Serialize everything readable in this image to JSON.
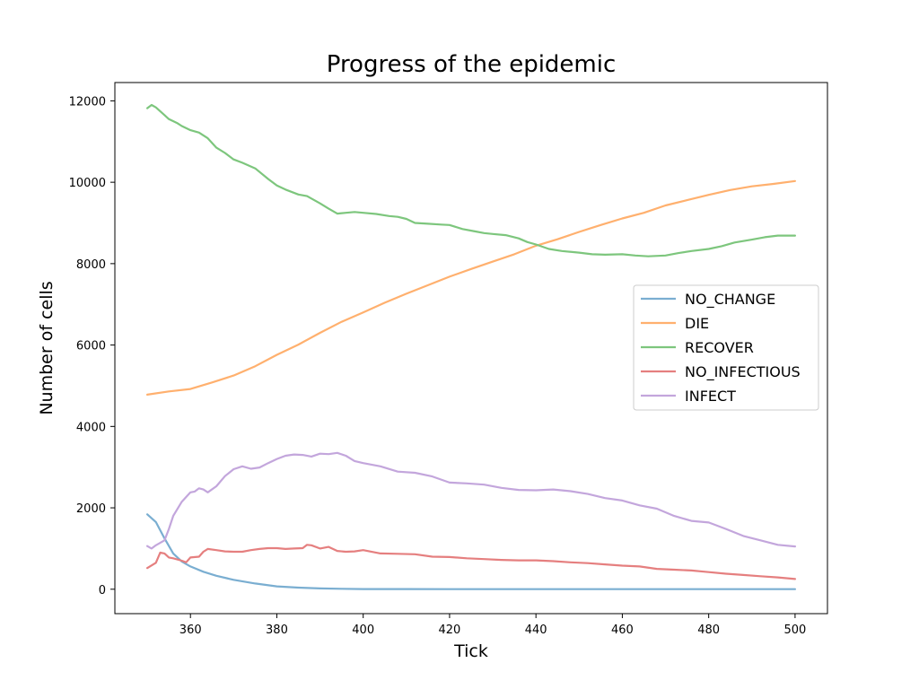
{
  "chart_data": {
    "type": "line",
    "title": "Progress of the epidemic",
    "xlabel": "Tick",
    "ylabel": "Number of cells",
    "xlim": [
      342.5,
      507.5
    ],
    "ylim": [
      -600,
      12450
    ],
    "xticks": [
      360,
      380,
      400,
      420,
      440,
      460,
      480,
      500
    ],
    "yticks": [
      0,
      2000,
      4000,
      6000,
      8000,
      10000,
      12000
    ],
    "grid": false,
    "legend_position": "center-right",
    "series": [
      {
        "name": "NO_CHANGE",
        "color": "#7aaed1",
        "x": [
          350,
          352,
          354,
          356,
          358,
          360,
          363,
          366,
          370,
          375,
          380,
          385,
          390,
          395,
          400,
          410,
          420,
          440,
          460,
          480,
          500
        ],
        "y": [
          1840,
          1650,
          1250,
          880,
          680,
          560,
          430,
          330,
          230,
          140,
          70,
          40,
          20,
          10,
          5,
          3,
          2,
          2,
          2,
          2,
          2
        ]
      },
      {
        "name": "DIE",
        "color": "#ffb06e",
        "x": [
          350,
          355,
          360,
          365,
          370,
          375,
          380,
          385,
          390,
          395,
          400,
          405,
          410,
          415,
          420,
          425,
          430,
          435,
          440,
          445,
          450,
          455,
          460,
          465,
          470,
          475,
          480,
          485,
          490,
          495,
          500
        ],
        "y": [
          4780,
          4860,
          4920,
          5080,
          5250,
          5480,
          5760,
          6010,
          6300,
          6570,
          6800,
          7040,
          7260,
          7470,
          7680,
          7870,
          8050,
          8230,
          8440,
          8600,
          8780,
          8950,
          9110,
          9250,
          9430,
          9560,
          9690,
          9810,
          9900,
          9960,
          10030
        ]
      },
      {
        "name": "RECOVER",
        "color": "#7dc67d",
        "x": [
          350,
          351,
          352,
          354,
          355,
          357,
          358,
          360,
          362,
          364,
          366,
          368,
          370,
          372,
          375,
          378,
          380,
          382,
          385,
          387,
          390,
          392,
          394,
          396,
          398,
          400,
          403,
          406,
          408,
          410,
          412,
          415,
          418,
          420,
          423,
          426,
          428,
          430,
          433,
          436,
          438,
          440,
          443,
          446,
          450,
          453,
          456,
          460,
          463,
          466,
          470,
          473,
          476,
          480,
          483,
          486,
          490,
          493,
          496,
          500
        ],
        "y": [
          11820,
          11900,
          11840,
          11650,
          11550,
          11450,
          11380,
          11280,
          11220,
          11080,
          10850,
          10720,
          10560,
          10480,
          10340,
          10080,
          9920,
          9820,
          9700,
          9660,
          9480,
          9350,
          9230,
          9250,
          9270,
          9250,
          9220,
          9170,
          9150,
          9100,
          9000,
          8980,
          8960,
          8950,
          8850,
          8790,
          8750,
          8730,
          8700,
          8620,
          8530,
          8470,
          8360,
          8310,
          8270,
          8230,
          8220,
          8230,
          8200,
          8180,
          8200,
          8260,
          8310,
          8360,
          8430,
          8520,
          8590,
          8650,
          8690,
          8690
        ]
      },
      {
        "name": "NO_INFECTIOUS",
        "color": "#e57f7f",
        "x": [
          350,
          352,
          353,
          354,
          355,
          356,
          358,
          359,
          360,
          362,
          363,
          364,
          366,
          368,
          370,
          372,
          374,
          376,
          378,
          380,
          382,
          384,
          386,
          387,
          388,
          390,
          392,
          394,
          396,
          398,
          400,
          404,
          408,
          412,
          416,
          420,
          424,
          428,
          432,
          436,
          440,
          444,
          448,
          452,
          456,
          460,
          464,
          468,
          472,
          476,
          480,
          484,
          488,
          492,
          496,
          500
        ],
        "y": [
          520,
          650,
          900,
          880,
          780,
          760,
          700,
          660,
          780,
          800,
          920,
          990,
          960,
          930,
          920,
          920,
          960,
          990,
          1010,
          1010,
          990,
          1000,
          1010,
          1090,
          1080,
          1000,
          1040,
          940,
          920,
          930,
          960,
          880,
          870,
          860,
          800,
          790,
          760,
          740,
          720,
          710,
          710,
          690,
          660,
          640,
          610,
          580,
          560,
          500,
          480,
          460,
          420,
          380,
          350,
          320,
          290,
          250
        ]
      },
      {
        "name": "INFECT",
        "color": "#c3a6dc",
        "x": [
          350,
          351,
          352,
          354,
          355,
          356,
          358,
          360,
          361,
          362,
          363,
          364,
          366,
          368,
          370,
          372,
          374,
          376,
          378,
          380,
          382,
          384,
          386,
          388,
          390,
          392,
          394,
          396,
          398,
          400,
          404,
          408,
          412,
          416,
          420,
          424,
          428,
          432,
          436,
          440,
          444,
          448,
          452,
          456,
          460,
          464,
          468,
          472,
          476,
          480,
          484,
          488,
          492,
          496,
          500
        ],
        "y": [
          1060,
          1000,
          1080,
          1200,
          1480,
          1800,
          2150,
          2380,
          2400,
          2480,
          2450,
          2380,
          2530,
          2780,
          2950,
          3020,
          2960,
          2990,
          3100,
          3200,
          3280,
          3310,
          3300,
          3260,
          3330,
          3320,
          3350,
          3280,
          3150,
          3100,
          3020,
          2890,
          2860,
          2770,
          2620,
          2600,
          2570,
          2490,
          2440,
          2430,
          2450,
          2410,
          2340,
          2240,
          2180,
          2060,
          1980,
          1800,
          1680,
          1640,
          1480,
          1310,
          1200,
          1090,
          1050
        ]
      }
    ]
  }
}
